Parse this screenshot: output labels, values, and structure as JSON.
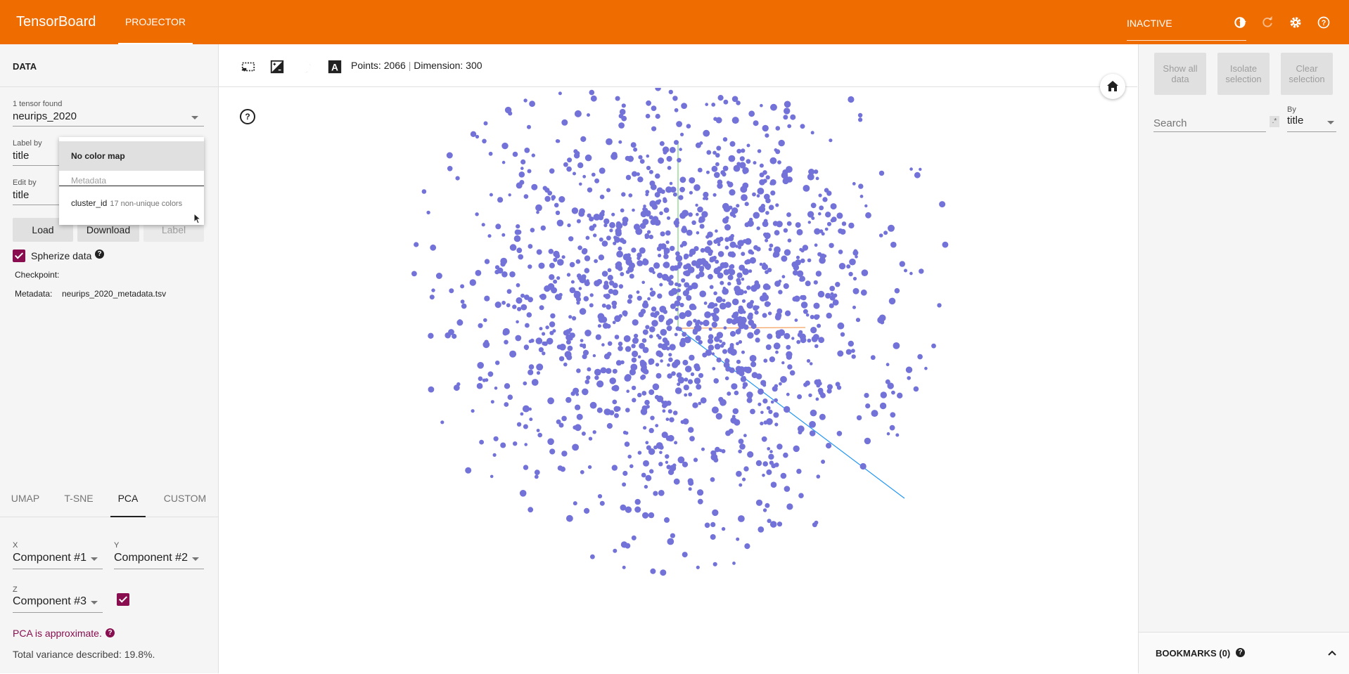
{
  "header": {
    "brand": "TensorBoard",
    "tab": "PROJECTOR",
    "status": "INACTIVE",
    "icons": [
      "dark-mode-icon",
      "refresh-icon",
      "settings-icon",
      "help-icon"
    ]
  },
  "data_panel": {
    "title": "DATA",
    "tensor_count_label": "1 tensor found",
    "tensor_value": "neurips_2020",
    "label_by_label": "Label by",
    "label_by_value": "title",
    "edit_by_label": "Edit by",
    "edit_by_value": "title",
    "load_label": "Load",
    "download_label": "Download",
    "label_button": "Label",
    "spherize_label": "Spherize data",
    "checkpoint_label": "Checkpoint:",
    "metadata_label": "Metadata:",
    "metadata_value": "neurips_2020_metadata.tsv"
  },
  "color_dropdown": {
    "selected": "No color map",
    "section_label": "Metadata",
    "option_name": "cluster_id",
    "option_note": "17 non-unique colors"
  },
  "projection_tabs": [
    "UMAP",
    "T-SNE",
    "PCA",
    "CUSTOM"
  ],
  "active_projection": "PCA",
  "pca": {
    "x_label": "X",
    "x_value": "Component #1",
    "y_label": "Y",
    "y_value": "Component #2",
    "z_label": "Z",
    "z_value": "Component #3",
    "approx_text": "PCA is approximate.",
    "variance_text": "Total variance described: 19.8%."
  },
  "toolbar": {
    "points_text": "Points: 2066",
    "dimension_text": "Dimension: 300"
  },
  "inspector": {
    "show_all_label": "Show all data",
    "isolate_label": "Isolate selection",
    "clear_label": "Clear selection",
    "search_placeholder": "Search",
    "regex_symbol": ".*",
    "by_label": "By",
    "by_value": "title",
    "bookmarks_label": "BOOKMARKS (0)"
  },
  "colors": {
    "header": "#ef6c00",
    "point": "#7272d9",
    "accent": "#880e4f",
    "axis_y": "#7fd17f",
    "axis_x": "#f4a261",
    "axis_z": "#2196f3"
  }
}
